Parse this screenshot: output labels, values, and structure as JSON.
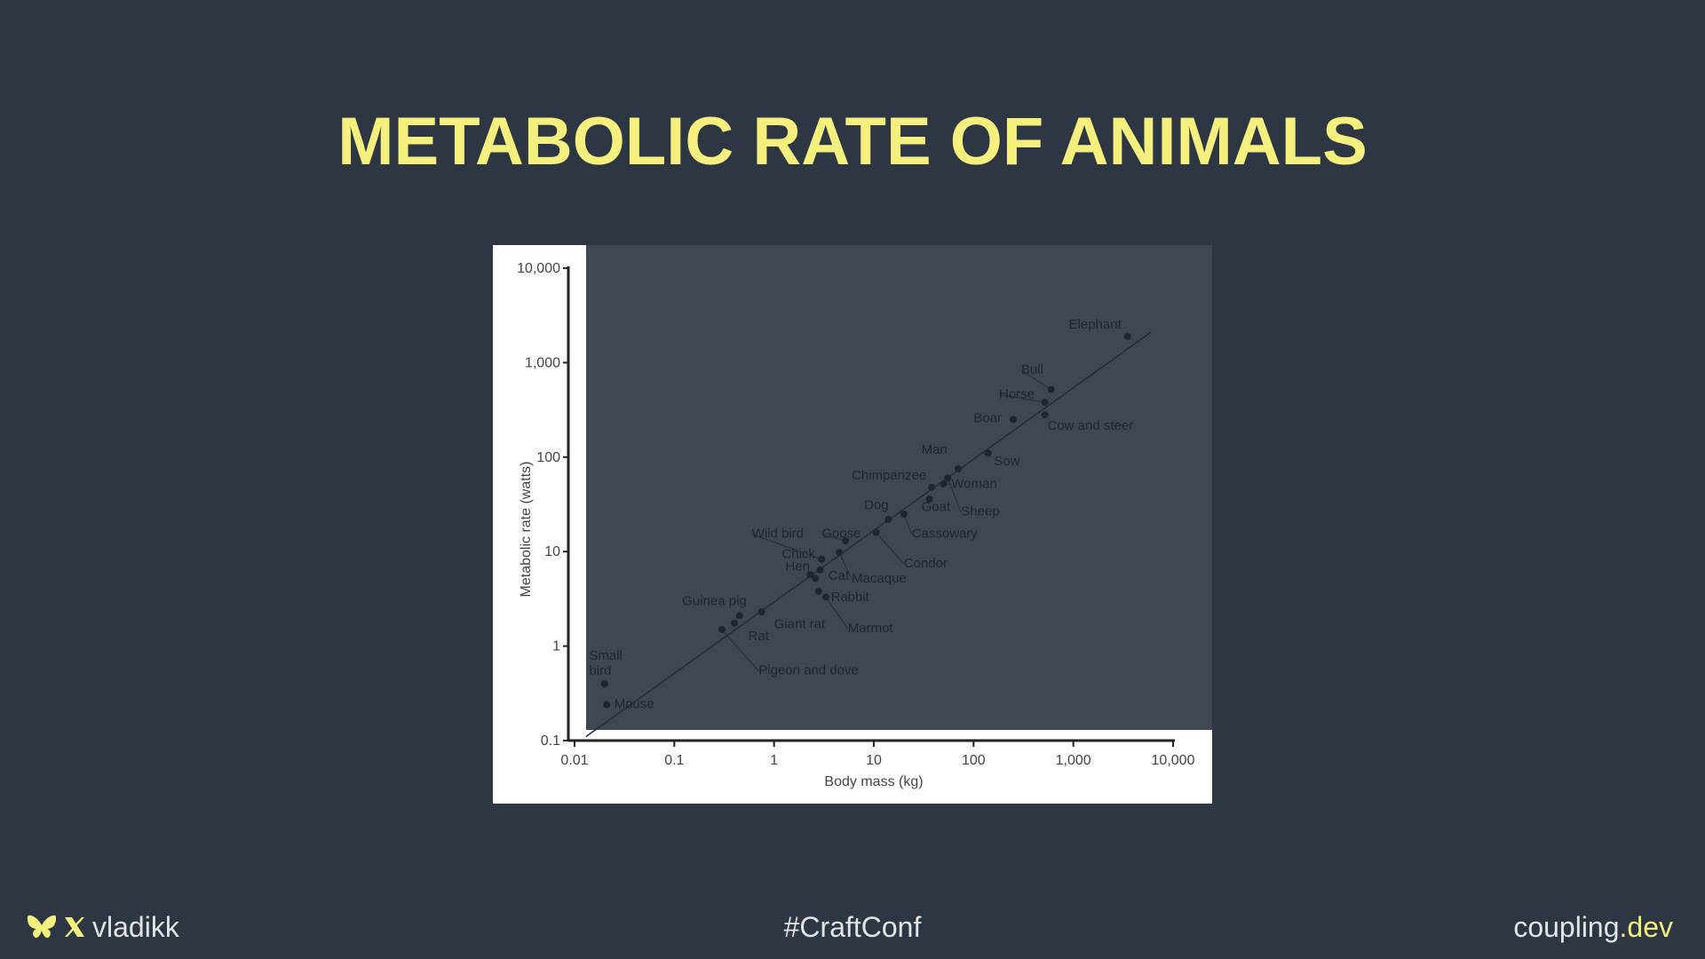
{
  "slide": {
    "title": "METABOLIC RATE OF ANIMALS"
  },
  "footer": {
    "handle": "vladikk",
    "hashtag": "#CraftConf",
    "site_main": "coupling",
    "site_accent": ".dev"
  },
  "icons": [
    "butterfly-icon",
    "x-logo-icon"
  ],
  "colors": {
    "background": "#2d3743",
    "title": "#f5ef7d",
    "footer_text": "#e4e4e4",
    "plot_area": "#3e4752",
    "panel": "#ffffff"
  },
  "chart_data": {
    "type": "scatter",
    "scale": "log-log",
    "xlabel": "Body mass (kg)",
    "ylabel": "Metabolic rate (watts)",
    "xlim": [
      0.01,
      10000
    ],
    "ylim": [
      0.1,
      10000
    ],
    "x_ticks": [
      {
        "value": 0.01,
        "label": "0.01"
      },
      {
        "value": 0.1,
        "label": "0.1"
      },
      {
        "value": 1,
        "label": "1"
      },
      {
        "value": 10,
        "label": "10"
      },
      {
        "value": 100,
        "label": "100"
      },
      {
        "value": 1000,
        "label": "1,000"
      },
      {
        "value": 10000,
        "label": "10,000"
      }
    ],
    "y_ticks": [
      {
        "value": 0.1,
        "label": "0.1"
      },
      {
        "value": 1,
        "label": "1"
      },
      {
        "value": 10,
        "label": "10"
      },
      {
        "value": 100,
        "label": "100"
      },
      {
        "value": 1000,
        "label": "1,000"
      },
      {
        "value": 10000,
        "label": "10,000"
      }
    ],
    "trend_line": {
      "from": [
        0.013,
        0.11
      ],
      "to": [
        6000,
        2100
      ]
    },
    "points": [
      {
        "label": "Mouse",
        "x": 0.021,
        "y": 0.24,
        "label_x": 0.025,
        "label_y": 0.22
      },
      {
        "label": "Small\nbird",
        "x": 0.02,
        "y": 0.4,
        "label_x": 0.014,
        "label_y": 0.72
      },
      {
        "label": "Pigeon and dove",
        "x": 0.3,
        "y": 1.5,
        "label_x": 0.7,
        "label_y": 0.5,
        "leader": true
      },
      {
        "label": "Rat",
        "x": 0.4,
        "y": 1.75,
        "label_x": 0.55,
        "label_y": 1.15
      },
      {
        "label": "Guinea pig",
        "x": 0.45,
        "y": 2.1,
        "label_x": 0.12,
        "label_y": 2.7
      },
      {
        "label": "Giant rat",
        "x": 0.75,
        "y": 2.3,
        "label_x": 1.0,
        "label_y": 1.55
      },
      {
        "label": "Hen",
        "x": 2.3,
        "y": 5.7,
        "label_x": 1.3,
        "label_y": 6.3
      },
      {
        "label": "Chick",
        "x": 2.9,
        "y": 6.4,
        "label_x": 1.2,
        "label_y": 8.5
      },
      {
        "label": "Cat",
        "x": 2.6,
        "y": 5.2,
        "label_x": 3.5,
        "label_y": 5.0
      },
      {
        "label": "Rabbit",
        "x": 2.8,
        "y": 3.8,
        "label_x": 3.7,
        "label_y": 3.0
      },
      {
        "label": "Wild bird",
        "x": 3.0,
        "y": 8.3,
        "label_x": 0.6,
        "label_y": 14,
        "leader": true
      },
      {
        "label": "Macaque",
        "x": 4.5,
        "y": 9.8,
        "label_x": 6.0,
        "label_y": 4.7,
        "leader": true
      },
      {
        "label": "Marmot",
        "x": 3.3,
        "y": 3.3,
        "label_x": 5.5,
        "label_y": 1.4,
        "leader": true
      },
      {
        "label": "Goose",
        "x": 5.2,
        "y": 13,
        "label_x": 3.0,
        "label_y": 14,
        "leader": true
      },
      {
        "label": "Condor",
        "x": 10.5,
        "y": 16,
        "label_x": 20,
        "label_y": 6.8,
        "leader": true
      },
      {
        "label": "Dog",
        "x": 14,
        "y": 22,
        "label_x": 8.0,
        "label_y": 28
      },
      {
        "label": "Cassowary",
        "x": 20,
        "y": 25,
        "label_x": 24,
        "label_y": 14,
        "leader": true
      },
      {
        "label": "Goat",
        "x": 36,
        "y": 36,
        "label_x": 30,
        "label_y": 27
      },
      {
        "label": "Chimpanzee",
        "x": 38,
        "y": 48,
        "label_x": 6.0,
        "label_y": 58
      },
      {
        "label": "Woman",
        "x": 50,
        "y": 52,
        "label_x": 60,
        "label_y": 47,
        "leader": true
      },
      {
        "label": "Sheep",
        "x": 55,
        "y": 60,
        "label_x": 75,
        "label_y": 24,
        "leader": true
      },
      {
        "label": "Man",
        "x": 70,
        "y": 75,
        "label_x": 30,
        "label_y": 108
      },
      {
        "label": "Sow",
        "x": 140,
        "y": 110,
        "label_x": 160,
        "label_y": 82
      },
      {
        "label": "Boar",
        "x": 250,
        "y": 250,
        "label_x": 100,
        "label_y": 235
      },
      {
        "label": "Cow and steer",
        "x": 520,
        "y": 280,
        "label_x": 550,
        "label_y": 195
      },
      {
        "label": "Horse",
        "x": 520,
        "y": 380,
        "label_x": 180,
        "label_y": 420,
        "leader": true
      },
      {
        "label": "Bull",
        "x": 600,
        "y": 520,
        "label_x": 300,
        "label_y": 760,
        "leader": true
      },
      {
        "label": "Elephant",
        "x": 3500,
        "y": 1900,
        "label_x": 900,
        "label_y": 2300
      }
    ]
  }
}
